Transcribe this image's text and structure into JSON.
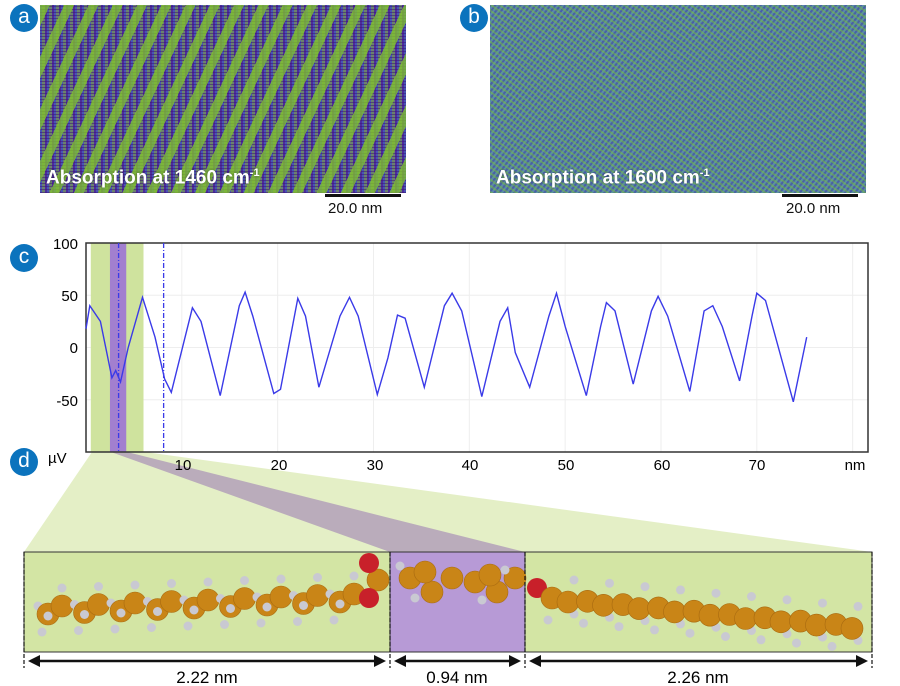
{
  "panels": {
    "a": {
      "badge": "a",
      "caption": "Absorption at 1460 cm",
      "caption_sup": "-1",
      "scale_label": "20.0 nm"
    },
    "b": {
      "badge": "b",
      "caption": "Absorption at 1600 cm",
      "caption_sup": "-1",
      "scale_label": "20.0 nm"
    },
    "c": {
      "badge": "c"
    },
    "d": {
      "badge": "d",
      "segments": [
        {
          "label": "2.22 nm",
          "color": "#d3e5a4"
        },
        {
          "label": "0.94 nm",
          "color": "#b79ad6"
        },
        {
          "label": "2.26 nm",
          "color": "#d3e5a4"
        }
      ]
    }
  },
  "colors": {
    "badge": "#0b73bd",
    "line": "#3a3ae8",
    "green_band": "#cfe39e",
    "purple_band": "#a27fcf",
    "carbon": "#c98517",
    "oxygen": "#c8202a",
    "hydrogen": "#c9c9d2"
  },
  "chart_data": {
    "type": "line",
    "xlabel": "nm",
    "ylabel": "µV",
    "xlim": [
      0,
      81.6
    ],
    "ylim": [
      -100,
      100
    ],
    "x_ticks": [
      "10",
      "20",
      "30",
      "40",
      "50",
      "60",
      "70"
    ],
    "y_ticks": [
      "100",
      "50",
      "0",
      "-50"
    ],
    "grid": true,
    "highlight_bands": [
      {
        "from": 0.5,
        "to": 6.0,
        "color": "green"
      },
      {
        "from": 2.5,
        "to": 4.2,
        "color": "purple"
      }
    ],
    "markers_dashdot": [
      3.4,
      8.1
    ],
    "series": [
      {
        "x": [
          0,
          0.4,
          1.5,
          2.7,
          3.1,
          3.6,
          4.4,
          5.9,
          7.2,
          8.2,
          8.9,
          11.1,
          12.0,
          14.0,
          16.0,
          16.6,
          17.4,
          19.6,
          20.3,
          22.1,
          22.9,
          24.3,
          26.5,
          27.5,
          28.4,
          30.4,
          31.5,
          32.5,
          33.3,
          35.3,
          37.4,
          38.2,
          39.2,
          41.3,
          43.2,
          44.0,
          44.8,
          46.3,
          48.3,
          49.1,
          50.0,
          52.2,
          53.7,
          54.3,
          55.2,
          57.1,
          59.0,
          59.7,
          60.7,
          63.0,
          64.5,
          65.4,
          66.4,
          68.2,
          69.5,
          70.0,
          70.9,
          73.8,
          75.2
        ],
        "y": [
          18,
          40,
          25,
          -29,
          -22,
          -33,
          0,
          48,
          10,
          -30,
          -43,
          38,
          25,
          -46,
          40,
          53,
          30,
          -44,
          -40,
          47,
          30,
          -38,
          30,
          48,
          30,
          -45,
          -10,
          31,
          28,
          -38,
          40,
          52,
          35,
          -47,
          25,
          38,
          -5,
          -38,
          30,
          52,
          20,
          -46,
          20,
          43,
          35,
          -35,
          35,
          49,
          30,
          -42,
          35,
          40,
          20,
          -32,
          30,
          52,
          45,
          -52,
          10
        ]
      }
    ]
  }
}
